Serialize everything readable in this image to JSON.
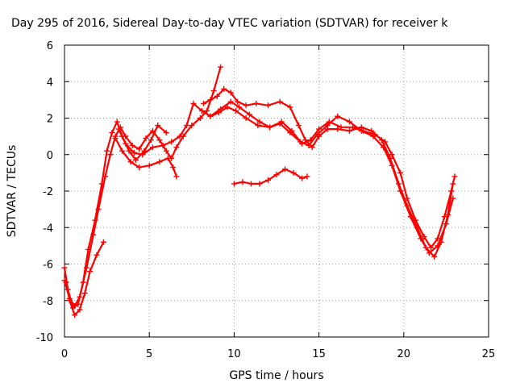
{
  "chart_data": {
    "type": "scatter",
    "title": "Day 295 of 2016, Sidereal Day-to-day VTEC variation (SDTVAR) for receiver k",
    "xlabel": "GPS time / hours",
    "ylabel": "SDTVAR / TECUs",
    "xlim": [
      0,
      25
    ],
    "ylim": [
      -10,
      6
    ],
    "xticks": [
      "0",
      "5",
      "10",
      "15",
      "20",
      "25"
    ],
    "yticks": [
      "-10",
      "-8",
      "-6",
      "-4",
      "-2",
      "0",
      "2",
      "4",
      "6"
    ],
    "grid": true,
    "marker": "+",
    "color": "#ff0000",
    "series": [
      {
        "points": [
          [
            0.0,
            -6.2
          ],
          [
            0.2,
            -7.4
          ],
          [
            0.5,
            -8.4
          ],
          [
            0.8,
            -8.2
          ],
          [
            1.1,
            -7.0
          ],
          [
            1.4,
            -5.2
          ],
          [
            1.8,
            -3.6
          ],
          [
            2.2,
            -1.6
          ],
          [
            2.5,
            0.2
          ],
          [
            2.8,
            1.2
          ],
          [
            3.1,
            1.8
          ],
          [
            3.4,
            1.0
          ],
          [
            3.8,
            0.2
          ],
          [
            4.2,
            -0.3
          ],
          [
            4.7,
            0.2
          ],
          [
            5.1,
            0.8
          ],
          [
            5.5,
            1.6
          ],
          [
            6.0,
            1.2
          ]
        ]
      },
      {
        "points": [
          [
            0.1,
            -7.0
          ],
          [
            0.3,
            -8.0
          ],
          [
            0.6,
            -8.8
          ],
          [
            0.9,
            -8.5
          ],
          [
            1.2,
            -7.6
          ],
          [
            1.5,
            -6.4
          ],
          [
            1.9,
            -5.5
          ],
          [
            2.3,
            -4.8
          ]
        ]
      },
      {
        "points": [
          [
            0.0,
            -6.9
          ],
          [
            0.3,
            -7.9
          ],
          [
            0.6,
            -8.3
          ],
          [
            0.9,
            -7.8
          ],
          [
            1.3,
            -6.2
          ],
          [
            1.7,
            -4.4
          ],
          [
            2.0,
            -3.0
          ],
          [
            2.4,
            -1.2
          ],
          [
            2.7,
            0.0
          ],
          [
            3.0,
            1.0
          ],
          [
            3.3,
            1.5
          ],
          [
            3.6,
            1.0
          ],
          [
            4.0,
            0.5
          ],
          [
            4.4,
            0.3
          ],
          [
            4.8,
            0.9
          ],
          [
            5.2,
            1.3
          ],
          [
            5.6,
            0.8
          ],
          [
            6.0,
            0.2
          ],
          [
            6.3,
            -0.2
          ],
          [
            6.6,
            0.4
          ],
          [
            7.0,
            1.0
          ],
          [
            7.5,
            1.6
          ],
          [
            8.0,
            2.0
          ],
          [
            8.4,
            2.4
          ],
          [
            8.8,
            3.5
          ],
          [
            9.2,
            4.8
          ]
        ]
      },
      {
        "points": [
          [
            3.0,
            0.9
          ],
          [
            3.4,
            0.2
          ],
          [
            3.9,
            -0.4
          ],
          [
            4.4,
            -0.7
          ],
          [
            5.0,
            -0.6
          ],
          [
            5.6,
            -0.4
          ],
          [
            6.1,
            -0.2
          ],
          [
            6.4,
            -0.7
          ],
          [
            6.6,
            -1.2
          ]
        ]
      },
      {
        "points": [
          [
            3.2,
            1.4
          ],
          [
            3.6,
            0.6
          ],
          [
            4.1,
            0.1
          ],
          [
            4.6,
            0.0
          ],
          [
            5.2,
            0.4
          ],
          [
            5.8,
            0.5
          ],
          [
            6.3,
            0.7
          ],
          [
            6.8,
            1.0
          ],
          [
            7.2,
            1.6
          ],
          [
            7.6,
            2.8
          ],
          [
            8.1,
            2.4
          ],
          [
            8.6,
            2.1
          ],
          [
            9.1,
            2.3
          ],
          [
            9.6,
            2.6
          ],
          [
            10.1,
            2.4
          ],
          [
            10.7,
            2.0
          ],
          [
            11.4,
            1.6
          ],
          [
            12.1,
            1.5
          ],
          [
            12.8,
            1.8
          ],
          [
            13.4,
            1.3
          ],
          [
            14.0,
            0.6
          ],
          [
            14.5,
            0.8
          ],
          [
            15.0,
            1.4
          ],
          [
            15.6,
            1.8
          ],
          [
            16.3,
            1.5
          ],
          [
            17.0,
            1.5
          ],
          [
            17.6,
            1.3
          ],
          [
            18.3,
            1.1
          ],
          [
            18.9,
            0.7
          ],
          [
            19.3,
            0.0
          ],
          [
            19.8,
            -1.0
          ],
          [
            20.2,
            -2.4
          ],
          [
            20.7,
            -3.6
          ],
          [
            21.2,
            -4.5
          ],
          [
            21.6,
            -5.1
          ],
          [
            22.0,
            -4.6
          ],
          [
            22.4,
            -3.4
          ],
          [
            22.8,
            -2.0
          ],
          [
            23.0,
            -1.2
          ]
        ]
      },
      {
        "points": [
          [
            8.2,
            2.8
          ],
          [
            8.6,
            3.0
          ],
          [
            9.0,
            3.2
          ],
          [
            9.4,
            3.6
          ],
          [
            9.8,
            3.4
          ],
          [
            10.2,
            2.9
          ],
          [
            10.7,
            2.7
          ],
          [
            11.3,
            2.8
          ],
          [
            12.0,
            2.7
          ],
          [
            12.7,
            2.9
          ],
          [
            13.3,
            2.6
          ],
          [
            13.8,
            1.6
          ],
          [
            14.2,
            0.8
          ],
          [
            14.6,
            0.4
          ],
          [
            15.0,
            1.0
          ],
          [
            15.5,
            1.4
          ],
          [
            16.1,
            1.4
          ],
          [
            16.8,
            1.3
          ],
          [
            17.5,
            1.5
          ],
          [
            18.1,
            1.3
          ],
          [
            18.7,
            0.8
          ],
          [
            19.2,
            -0.2
          ],
          [
            19.7,
            -1.6
          ],
          [
            20.2,
            -2.8
          ],
          [
            20.8,
            -4.0
          ],
          [
            21.3,
            -5.1
          ],
          [
            21.8,
            -5.6
          ],
          [
            22.2,
            -4.8
          ],
          [
            22.6,
            -3.3
          ],
          [
            22.9,
            -1.6
          ]
        ]
      },
      {
        "points": [
          [
            8.6,
            2.1
          ],
          [
            9.2,
            2.5
          ],
          [
            9.8,
            2.9
          ],
          [
            10.3,
            2.6
          ],
          [
            10.9,
            2.2
          ],
          [
            11.5,
            1.8
          ],
          [
            12.1,
            1.5
          ],
          [
            12.7,
            1.7
          ],
          [
            13.3,
            1.2
          ],
          [
            13.9,
            0.7
          ],
          [
            14.4,
            0.5
          ],
          [
            14.9,
            1.1
          ],
          [
            15.5,
            1.6
          ],
          [
            16.1,
            2.1
          ],
          [
            16.8,
            1.8
          ],
          [
            17.5,
            1.3
          ],
          [
            18.2,
            1.0
          ],
          [
            18.8,
            0.4
          ],
          [
            19.3,
            -0.6
          ],
          [
            19.8,
            -2.0
          ],
          [
            20.4,
            -3.4
          ],
          [
            21.0,
            -4.6
          ],
          [
            21.5,
            -5.4
          ],
          [
            22.0,
            -5.0
          ],
          [
            22.5,
            -3.8
          ],
          [
            22.9,
            -2.4
          ]
        ]
      },
      {
        "points": [
          [
            10.0,
            -1.6
          ],
          [
            10.5,
            -1.5
          ],
          [
            11.0,
            -1.6
          ],
          [
            11.5,
            -1.6
          ],
          [
            12.0,
            -1.4
          ],
          [
            12.5,
            -1.1
          ],
          [
            13.0,
            -0.8
          ],
          [
            13.5,
            -1.0
          ],
          [
            14.0,
            -1.3
          ],
          [
            14.3,
            -1.2
          ]
        ]
      }
    ]
  }
}
